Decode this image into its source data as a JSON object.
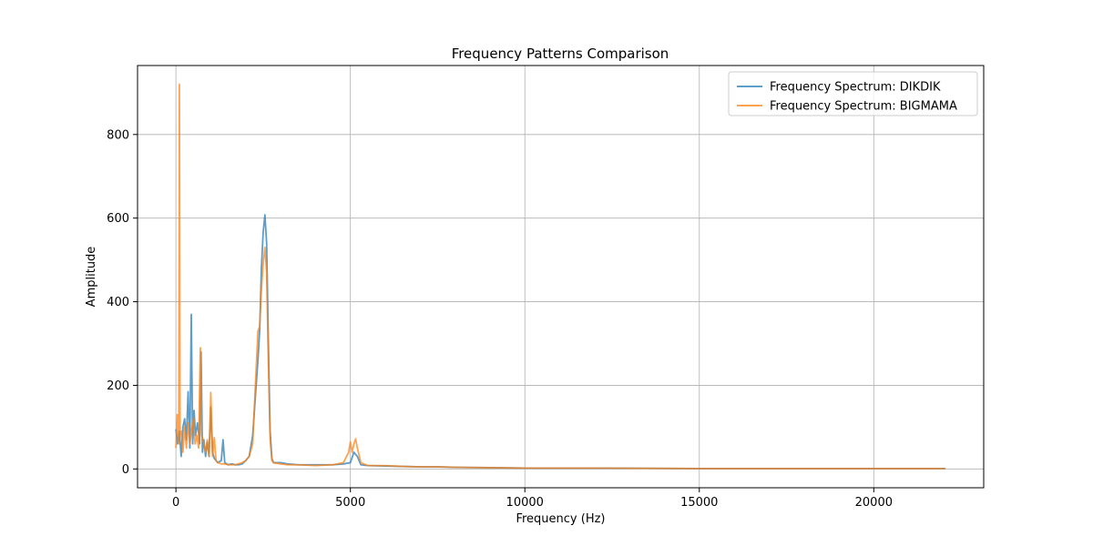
{
  "chart_data": {
    "type": "line",
    "title": "Frequency Patterns Comparison",
    "xlabel": "Frequency (Hz)",
    "ylabel": "Amplitude",
    "xlim": [
      -1100,
      23150
    ],
    "ylim": [
      -45,
      965
    ],
    "xticks": [
      0,
      5000,
      10000,
      15000,
      20000
    ],
    "xtick_labels": [
      "0",
      "5000",
      "10000",
      "15000",
      "20000"
    ],
    "yticks": [
      0,
      200,
      400,
      600,
      800
    ],
    "ytick_labels": [
      "0",
      "200",
      "400",
      "600",
      "800"
    ],
    "grid": true,
    "legend_position": "top-right",
    "series": [
      {
        "name": "Frequency Spectrum: DIKDIK",
        "color": "#1f77b4",
        "points": [
          [
            0,
            95
          ],
          [
            50,
            60
          ],
          [
            100,
            90
          ],
          [
            150,
            30
          ],
          [
            200,
            100
          ],
          [
            250,
            120
          ],
          [
            300,
            70
          ],
          [
            350,
            185
          ],
          [
            400,
            50
          ],
          [
            440,
            370
          ],
          [
            480,
            60
          ],
          [
            520,
            140
          ],
          [
            560,
            80
          ],
          [
            620,
            110
          ],
          [
            680,
            60
          ],
          [
            720,
            280
          ],
          [
            760,
            40
          ],
          [
            800,
            70
          ],
          [
            850,
            30
          ],
          [
            900,
            65
          ],
          [
            950,
            30
          ],
          [
            1000,
            148
          ],
          [
            1050,
            40
          ],
          [
            1100,
            25
          ],
          [
            1200,
            15
          ],
          [
            1300,
            20
          ],
          [
            1350,
            70
          ],
          [
            1400,
            15
          ],
          [
            1500,
            10
          ],
          [
            1600,
            12
          ],
          [
            1700,
            10
          ],
          [
            1800,
            10
          ],
          [
            1900,
            12
          ],
          [
            2000,
            20
          ],
          [
            2100,
            30
          ],
          [
            2200,
            80
          ],
          [
            2300,
            200
          ],
          [
            2350,
            260
          ],
          [
            2400,
            330
          ],
          [
            2450,
            480
          ],
          [
            2500,
            565
          ],
          [
            2550,
            608
          ],
          [
            2600,
            540
          ],
          [
            2650,
            300
          ],
          [
            2700,
            90
          ],
          [
            2750,
            25
          ],
          [
            2800,
            15
          ],
          [
            3000,
            15
          ],
          [
            3200,
            12
          ],
          [
            3500,
            10
          ],
          [
            4000,
            10
          ],
          [
            4500,
            10
          ],
          [
            4800,
            12
          ],
          [
            5000,
            15
          ],
          [
            5100,
            40
          ],
          [
            5200,
            30
          ],
          [
            5300,
            10
          ],
          [
            5500,
            8
          ],
          [
            6000,
            7
          ],
          [
            6500,
            6
          ],
          [
            7000,
            5
          ],
          [
            7500,
            5
          ],
          [
            8000,
            4
          ],
          [
            9000,
            3
          ],
          [
            10000,
            2
          ],
          [
            12000,
            2
          ],
          [
            15000,
            1
          ],
          [
            18000,
            1
          ],
          [
            20000,
            1
          ],
          [
            22050,
            1
          ]
        ]
      },
      {
        "name": "Frequency Spectrum: BIGMAMA",
        "color": "#ff7f0e",
        "points": [
          [
            0,
            50
          ],
          [
            40,
            130
          ],
          [
            80,
            60
          ],
          [
            100,
            920
          ],
          [
            120,
            80
          ],
          [
            160,
            90
          ],
          [
            200,
            40
          ],
          [
            250,
            100
          ],
          [
            300,
            50
          ],
          [
            350,
            110
          ],
          [
            400,
            60
          ],
          [
            450,
            95
          ],
          [
            500,
            120
          ],
          [
            550,
            60
          ],
          [
            600,
            80
          ],
          [
            650,
            50
          ],
          [
            700,
            290
          ],
          [
            740,
            80
          ],
          [
            800,
            60
          ],
          [
            850,
            40
          ],
          [
            900,
            70
          ],
          [
            950,
            30
          ],
          [
            1000,
            183
          ],
          [
            1050,
            30
          ],
          [
            1100,
            75
          ],
          [
            1150,
            20
          ],
          [
            1200,
            15
          ],
          [
            1300,
            12
          ],
          [
            1400,
            12
          ],
          [
            1500,
            10
          ],
          [
            1700,
            10
          ],
          [
            1900,
            15
          ],
          [
            2000,
            20
          ],
          [
            2100,
            30
          ],
          [
            2200,
            60
          ],
          [
            2300,
            240
          ],
          [
            2350,
            330
          ],
          [
            2400,
            340
          ],
          [
            2450,
            430
          ],
          [
            2500,
            490
          ],
          [
            2550,
            530
          ],
          [
            2600,
            470
          ],
          [
            2650,
            250
          ],
          [
            2700,
            70
          ],
          [
            2750,
            20
          ],
          [
            2800,
            15
          ],
          [
            3000,
            12
          ],
          [
            3200,
            10
          ],
          [
            3500,
            10
          ],
          [
            4000,
            8
          ],
          [
            4500,
            10
          ],
          [
            4800,
            15
          ],
          [
            4950,
            40
          ],
          [
            5000,
            65
          ],
          [
            5050,
            40
          ],
          [
            5100,
            60
          ],
          [
            5150,
            72
          ],
          [
            5200,
            50
          ],
          [
            5300,
            15
          ],
          [
            5500,
            8
          ],
          [
            6000,
            8
          ],
          [
            6500,
            6
          ],
          [
            7000,
            5
          ],
          [
            7500,
            5
          ],
          [
            8000,
            4
          ],
          [
            9000,
            3
          ],
          [
            10000,
            2
          ],
          [
            12000,
            2
          ],
          [
            15000,
            1
          ],
          [
            18000,
            1
          ],
          [
            20000,
            1
          ],
          [
            22050,
            1
          ]
        ]
      }
    ]
  }
}
